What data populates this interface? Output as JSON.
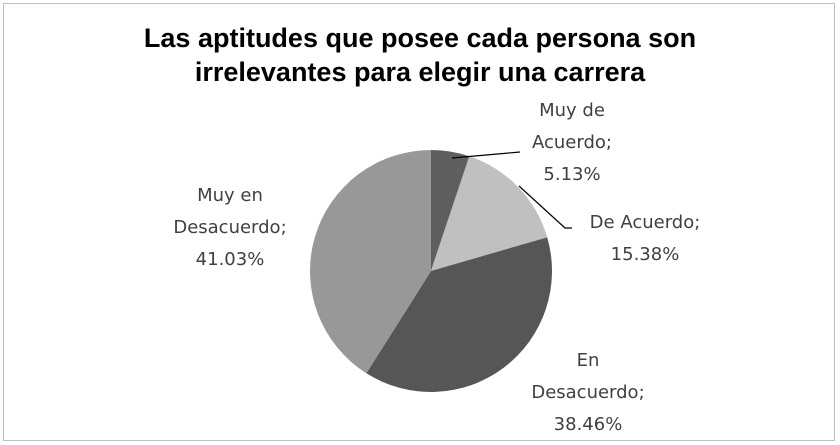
{
  "chart_data": {
    "type": "pie",
    "title": "Las aptitudes que posee cada persona son irrelevantes para elegir una carrera",
    "title_lines": [
      "Las aptitudes que posee cada persona son",
      "irrelevantes para elegir una carrera"
    ],
    "categories": [
      "Muy de Acuerdo",
      "De Acuerdo",
      "En Desacuerdo",
      "Muy en Desacuerdo"
    ],
    "values": [
      5.13,
      15.38,
      38.46,
      41.03
    ],
    "value_labels": [
      "5.13%",
      "15.38%",
      "38.46%",
      "41.03%"
    ],
    "label_separator": ";",
    "colors": [
      "#5f5f5f",
      "#c0c0c0",
      "#565656",
      "#989898"
    ]
  }
}
